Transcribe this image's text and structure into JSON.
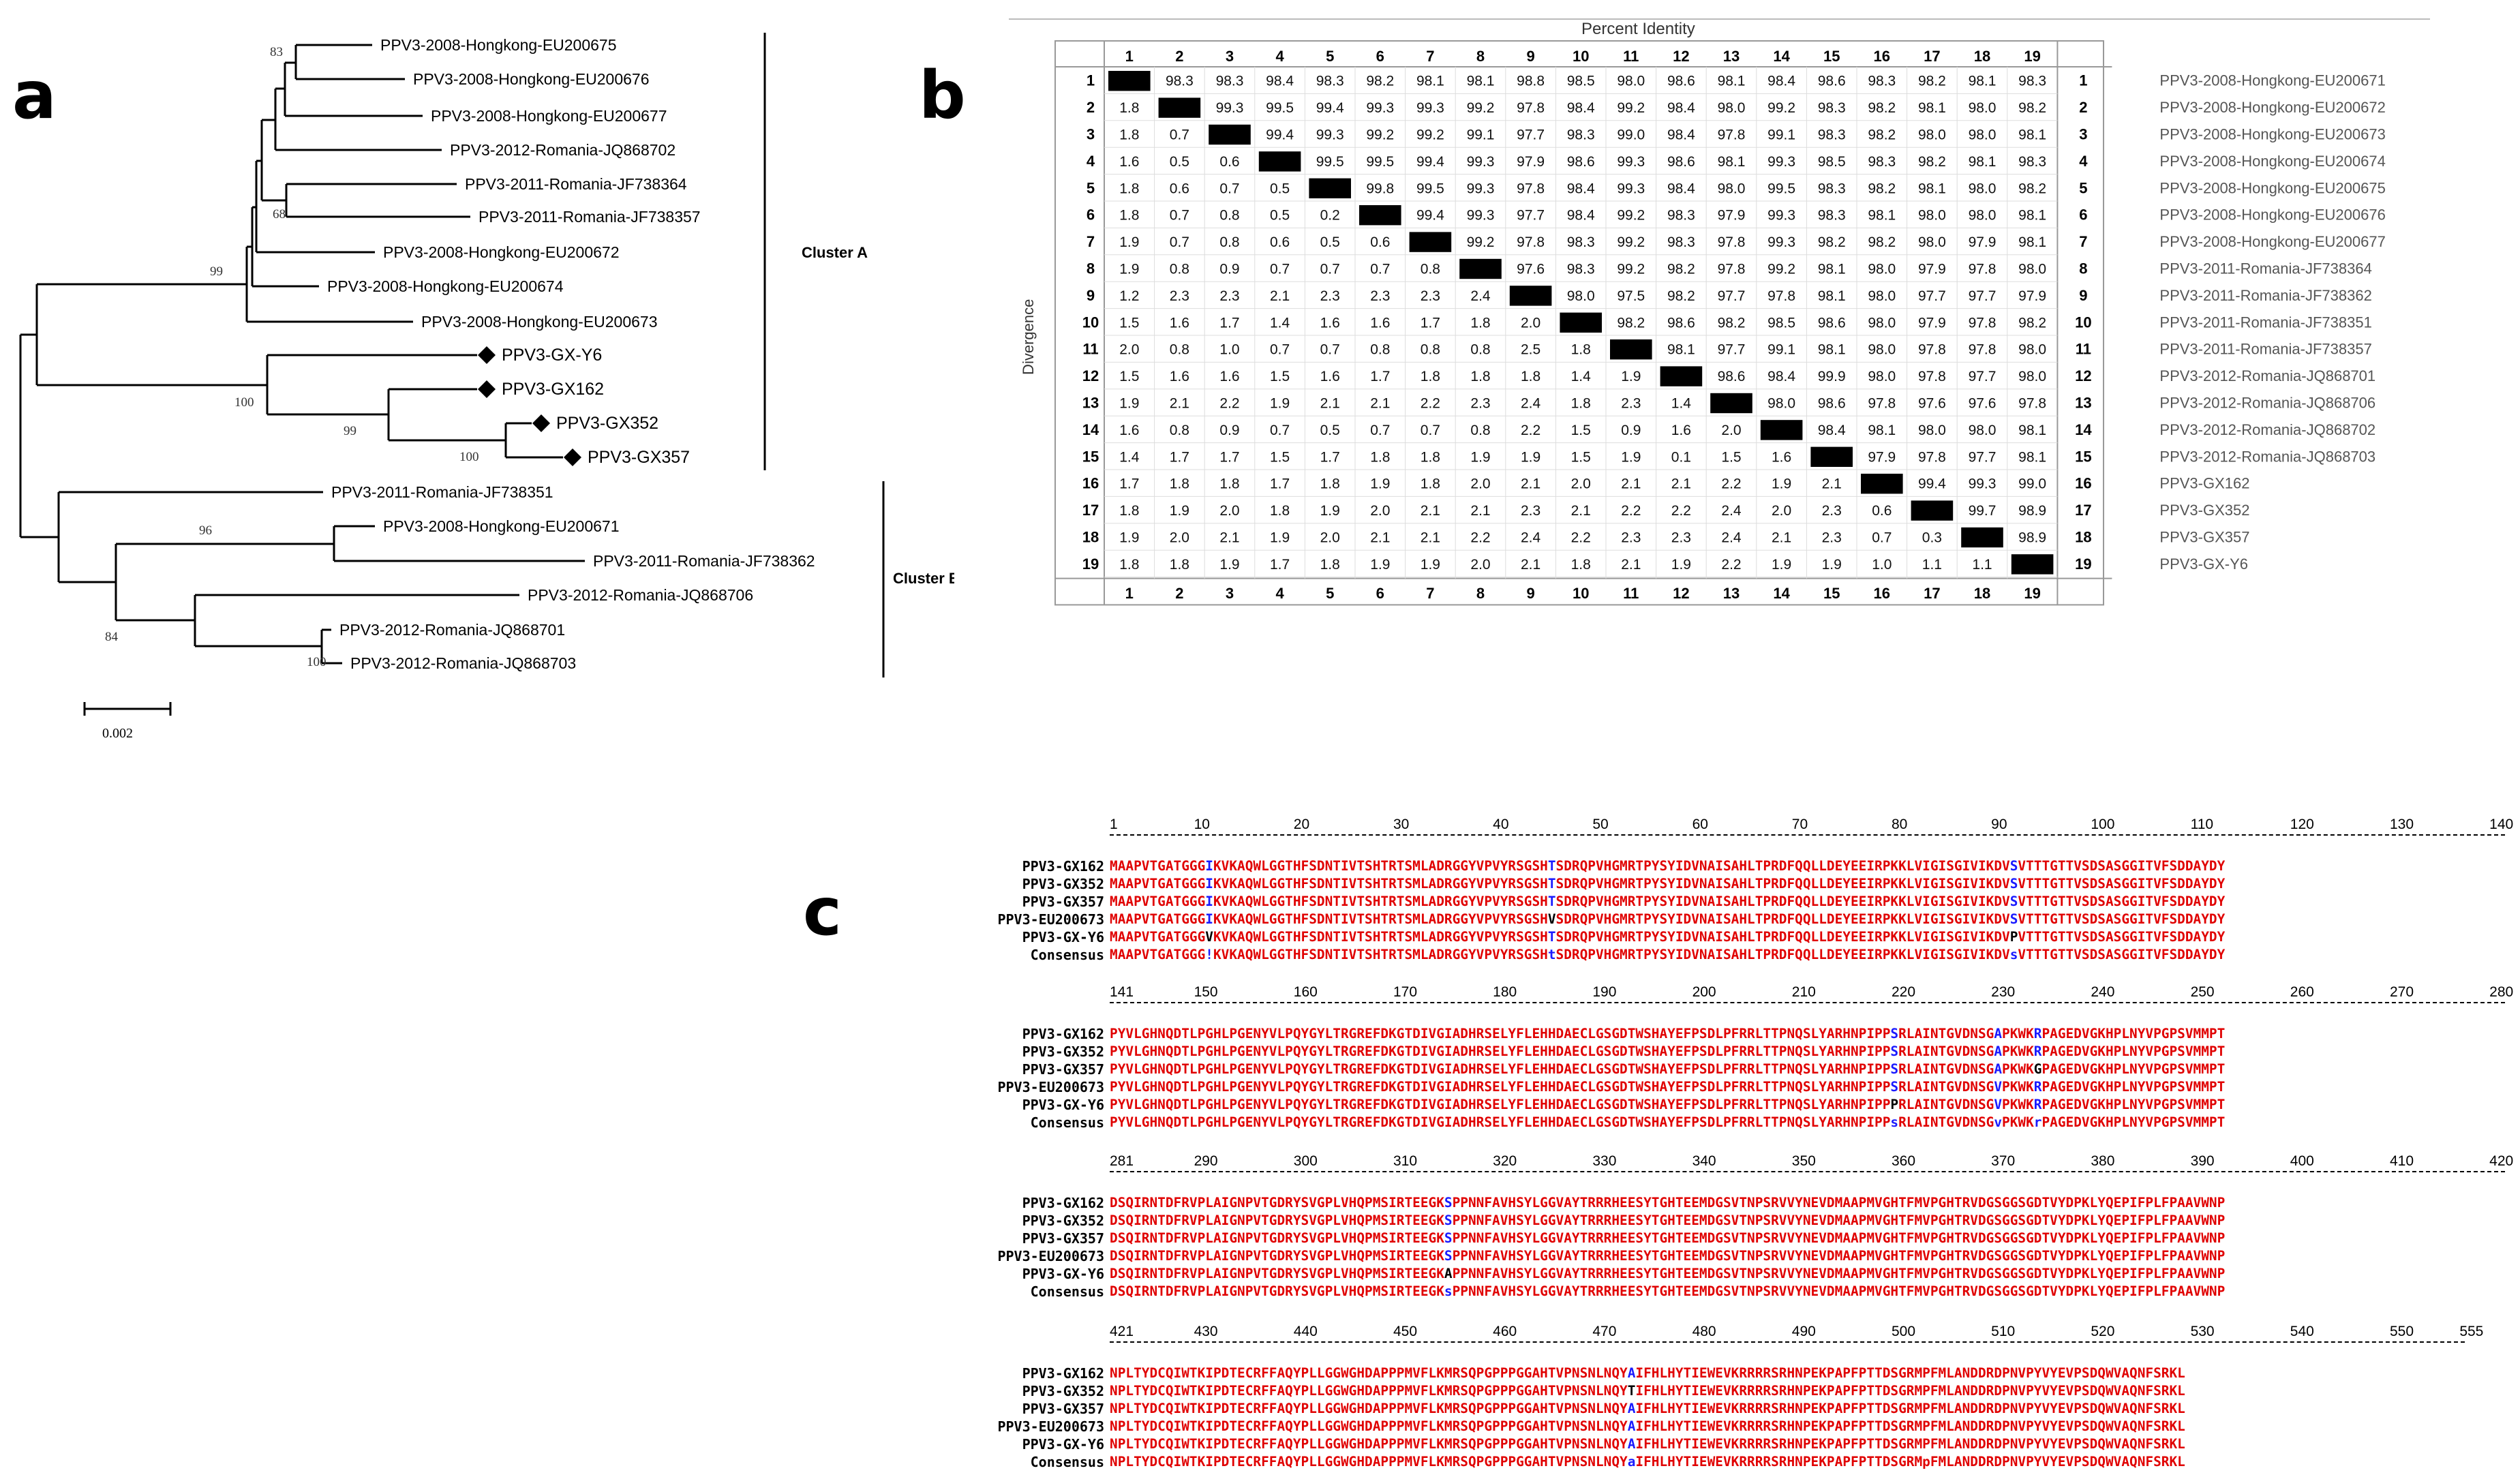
{
  "figure": {
    "panel_a": "a",
    "panel_b": "b",
    "panel_c": "c"
  },
  "tree": {
    "scale_label": "0.002",
    "cluster_a_label": "Cluster A",
    "cluster_b_label": "Cluster B",
    "leaves": [
      "PPV3-2008-Hongkong-EU200675",
      "PPV3-2008-Hongkong-EU200676",
      "PPV3-2008-Hongkong-EU200677",
      "PPV3-2012-Romania-JQ868702",
      "PPV3-2011-Romania-JF738364",
      "PPV3-2011-Romania-JF738357",
      "PPV3-2008-Hongkong-EU200672",
      "PPV3-2008-Hongkong-EU200674",
      "PPV3-2008-Hongkong-EU200673",
      "PPV3-GX-Y6",
      "PPV3-GX162",
      "PPV3-GX352",
      "PPV3-GX357",
      "PPV3-2011-Romania-JF738351",
      "PPV3-2008-Hongkong-EU200671",
      "PPV3-2011-Romania-JF738362",
      "PPV3-2012-Romania-JQ868706",
      "PPV3-2012-Romania-JQ868701",
      "PPV3-2012-Romania-JQ868703"
    ],
    "bootstrap": [
      "83",
      "68",
      "99",
      "100",
      "99",
      "100",
      "96",
      "84",
      "100"
    ]
  },
  "matrix": {
    "title": "Percent Identity",
    "ylabel": "Divergence",
    "n": 19,
    "rows": [
      [
        "",
        "98.3",
        "98.3",
        "98.4",
        "98.3",
        "98.2",
        "98.1",
        "98.1",
        "98.8",
        "98.5",
        "98.0",
        "98.6",
        "98.1",
        "98.4",
        "98.6",
        "98.3",
        "98.2",
        "98.1",
        "98.3"
      ],
      [
        "1.8",
        "",
        "99.3",
        "99.5",
        "99.4",
        "99.3",
        "99.3",
        "99.2",
        "97.8",
        "98.4",
        "99.2",
        "98.4",
        "98.0",
        "99.2",
        "98.3",
        "98.2",
        "98.1",
        "98.0",
        "98.2"
      ],
      [
        "1.8",
        "0.7",
        "",
        "99.4",
        "99.3",
        "99.2",
        "99.2",
        "99.1",
        "97.7",
        "98.3",
        "99.0",
        "98.4",
        "97.8",
        "99.1",
        "98.3",
        "98.2",
        "98.0",
        "98.0",
        "98.1"
      ],
      [
        "1.6",
        "0.5",
        "0.6",
        "",
        "99.5",
        "99.5",
        "99.4",
        "99.3",
        "97.9",
        "98.6",
        "99.3",
        "98.6",
        "98.1",
        "99.3",
        "98.5",
        "98.3",
        "98.2",
        "98.1",
        "98.3"
      ],
      [
        "1.8",
        "0.6",
        "0.7",
        "0.5",
        "",
        "99.8",
        "99.5",
        "99.3",
        "97.8",
        "98.4",
        "99.3",
        "98.4",
        "98.0",
        "99.5",
        "98.3",
        "98.2",
        "98.1",
        "98.0",
        "98.2"
      ],
      [
        "1.8",
        "0.7",
        "0.8",
        "0.5",
        "0.2",
        "",
        "99.4",
        "99.3",
        "97.7",
        "98.4",
        "99.2",
        "98.3",
        "97.9",
        "99.3",
        "98.3",
        "98.1",
        "98.0",
        "98.0",
        "98.1"
      ],
      [
        "1.9",
        "0.7",
        "0.8",
        "0.6",
        "0.5",
        "0.6",
        "",
        "99.2",
        "97.8",
        "98.3",
        "99.2",
        "98.3",
        "97.8",
        "99.3",
        "98.2",
        "98.2",
        "98.0",
        "97.9",
        "98.1"
      ],
      [
        "1.9",
        "0.8",
        "0.9",
        "0.7",
        "0.7",
        "0.7",
        "0.8",
        "",
        "97.6",
        "98.3",
        "99.2",
        "98.2",
        "97.8",
        "99.2",
        "98.1",
        "98.0",
        "97.9",
        "97.8",
        "98.0"
      ],
      [
        "1.2",
        "2.3",
        "2.3",
        "2.1",
        "2.3",
        "2.3",
        "2.3",
        "2.4",
        "",
        "98.0",
        "97.5",
        "98.2",
        "97.7",
        "97.8",
        "98.1",
        "98.0",
        "97.7",
        "97.7",
        "97.9"
      ],
      [
        "1.5",
        "1.6",
        "1.7",
        "1.4",
        "1.6",
        "1.6",
        "1.7",
        "1.8",
        "2.0",
        "",
        "98.2",
        "98.6",
        "98.2",
        "98.5",
        "98.6",
        "98.0",
        "97.9",
        "97.8",
        "98.2"
      ],
      [
        "2.0",
        "0.8",
        "1.0",
        "0.7",
        "0.7",
        "0.8",
        "0.8",
        "0.8",
        "2.5",
        "1.8",
        "",
        "98.1",
        "97.7",
        "99.1",
        "98.1",
        "98.0",
        "97.8",
        "97.8",
        "98.0"
      ],
      [
        "1.5",
        "1.6",
        "1.6",
        "1.5",
        "1.6",
        "1.7",
        "1.8",
        "1.8",
        "1.8",
        "1.4",
        "1.9",
        "",
        "98.6",
        "98.4",
        "99.9",
        "98.0",
        "97.8",
        "97.7",
        "98.0"
      ],
      [
        "1.9",
        "2.1",
        "2.2",
        "1.9",
        "2.1",
        "2.1",
        "2.2",
        "2.3",
        "2.4",
        "1.8",
        "2.3",
        "1.4",
        "",
        "98.0",
        "98.6",
        "97.8",
        "97.6",
        "97.6",
        "97.8"
      ],
      [
        "1.6",
        "0.8",
        "0.9",
        "0.7",
        "0.5",
        "0.7",
        "0.7",
        "0.8",
        "2.2",
        "1.5",
        "0.9",
        "1.6",
        "2.0",
        "",
        "98.4",
        "98.1",
        "98.0",
        "98.0",
        "98.1"
      ],
      [
        "1.4",
        "1.7",
        "1.7",
        "1.5",
        "1.7",
        "1.8",
        "1.8",
        "1.9",
        "1.9",
        "1.5",
        "1.9",
        "0.1",
        "1.5",
        "1.6",
        "",
        "97.9",
        "97.8",
        "97.7",
        "98.1"
      ],
      [
        "1.7",
        "1.8",
        "1.8",
        "1.7",
        "1.8",
        "1.9",
        "1.8",
        "2.0",
        "2.1",
        "2.0",
        "2.1",
        "2.1",
        "2.2",
        "1.9",
        "2.1",
        "",
        "99.4",
        "99.3",
        "99.0"
      ],
      [
        "1.8",
        "1.9",
        "2.0",
        "1.8",
        "1.9",
        "2.0",
        "2.1",
        "2.1",
        "2.3",
        "2.1",
        "2.2",
        "2.2",
        "2.4",
        "2.0",
        "2.3",
        "0.6",
        "",
        "99.7",
        "98.9"
      ],
      [
        "1.9",
        "2.0",
        "2.1",
        "1.9",
        "2.0",
        "2.1",
        "2.1",
        "2.2",
        "2.4",
        "2.2",
        "2.3",
        "2.3",
        "2.4",
        "2.1",
        "2.3",
        "0.7",
        "0.3",
        "",
        "98.9"
      ],
      [
        "1.8",
        "1.8",
        "1.9",
        "1.7",
        "1.8",
        "1.9",
        "1.9",
        "2.0",
        "2.1",
        "1.8",
        "2.1",
        "1.9",
        "2.2",
        "1.9",
        "1.9",
        "1.0",
        "1.1",
        "1.1",
        ""
      ]
    ],
    "seq_names": [
      "PPV3-2008-Hongkong-EU200671",
      "PPV3-2008-Hongkong-EU200672",
      "PPV3-2008-Hongkong-EU200673",
      "PPV3-2008-Hongkong-EU200674",
      "PPV3-2008-Hongkong-EU200675",
      "PPV3-2008-Hongkong-EU200676",
      "PPV3-2008-Hongkong-EU200677",
      "PPV3-2011-Romania-JF738364",
      "PPV3-2011-Romania-JF738362",
      "PPV3-2011-Romania-JF738351",
      "PPV3-2011-Romania-JF738357",
      "PPV3-2012-Romania-JQ868701",
      "PPV3-2012-Romania-JQ868706",
      "PPV3-2012-Romania-JQ868702",
      "PPV3-2012-Romania-JQ868703",
      "PPV3-GX162",
      "PPV3-GX352",
      "PPV3-GX357",
      "PPV3-GX-Y6"
    ]
  },
  "alignment": {
    "names": [
      "PPV3-GX162",
      "PPV3-GX352",
      "PPV3-GX357",
      "PPV3-EU200673",
      "PPV3-GX-Y6",
      "Consensus"
    ],
    "blocks": [
      {
        "ruler": [
          "1",
          "10",
          "20",
          "30",
          "40",
          "50",
          "60",
          "70",
          "80",
          "90",
          "100",
          "110",
          "120",
          "130",
          "140"
        ],
        "seqs": [
          "MAAPVTGATGGGIKVKAQWLGGTHFSDNTIVTSHTRTSMLADRGGYVPVYRSGSHTSDRQPVHGMRTPYSYIDVNAISAHLTPRDFQQLLDEYEEIRPKKLVIGISGIVIKDVSVTTTGTTVSDSASGGITVFSDDAYDY",
          "MAAPVTGATGGGIKVKAQWLGGTHFSDNTIVTSHTRTSMLADRGGYVPVYRSGSHTSDRQPVHGMRTPYSYIDVNAISAHLTPRDFQQLLDEYEEIRPKKLVIGISGIVIKDVSVTTTGTTVSDSASGGITVFSDDAYDY",
          "MAAPVTGATGGGIKVKAQWLGGTHFSDNTIVTSHTRTSMLADRGGYVPVYRSGSHTSDRQPVHGMRTPYSYIDVNAISAHLTPRDFQQLLDEYEEIRPKKLVIGISGIVIKDVSVTTTGTTVSDSASGGITVFSDDAYDY",
          "MAAPVTGATGGGIKVKAQWLGGTHFSDNTIVTSHTRTSMLADRGGYVPVYRSGSHVSDRQPVHGMRTPYSYIDVNAISAHLTPRDFQQLLDEYEEIRPKKLVIGISGIVIKDVSVTTTGTTVSDSASGGITVFSDDAYDY",
          "MAAPVTGATGGGVKVKAQWLGGTHFSDNTIVTSHTRTSMLADRGGYVPVYRSGSHTSDRQPVHGMRTPYSYIDVNAISAHLTPRDFQQLLDEYEEIRPKKLVIGISGIVIKDVPVTTTGTTVSDSASGGITVFSDDAYDY",
          "MAAPVTGATGGG!KVKAQWLGGTHFSDNTIVTSHTRTSMLADRGGYVPVYRSGSHtSDRQPVHGMRTPYSYIDVNAISAHLTPRDFQQLLDEYEEIRPKKLVIGISGIVIKDVsVTTTGTTVSDSASGGITVFSDDAYDY"
        ]
      },
      {
        "ruler": [
          "141",
          "150",
          "160",
          "170",
          "180",
          "190",
          "200",
          "210",
          "220",
          "230",
          "240",
          "250",
          "260",
          "270",
          "280"
        ],
        "seqs": [
          "PYVLGHNQDTLPGHLPGENYVLPQYGYLTRGREFDKGTDIVGIADHRSELYFLEHHDAECLGSGDTWSHAYEFPSDLPFRRLTTPNQSLYARHNPIPPSRLAINTGVDNSGAPKWKRPAGEDVGKHPLNYVPGPSVMMPT",
          "PYVLGHNQDTLPGHLPGENYVLPQYGYLTRGREFDKGTDIVGIADHRSELYFLEHHDAECLGSGDTWSHAYEFPSDLPFRRLTTPNQSLYARHNPIPPSRLAINTGVDNSGAPKWKRPAGEDVGKHPLNYVPGPSVMMPT",
          "PYVLGHNQDTLPGHLPGENYVLPQYGYLTRGREFDKGTDIVGIADHRSELYFLEHHDAECLGSGDTWSHAYEFPSDLPFRRLTTPNQSLYARHNPIPPSRLAINTGVDNSGAPKWKGPAGEDVGKHPLNYVPGPSVMMPT",
          "PYVLGHNQDTLPGHLPGENYVLPQYGYLTRGREFDKGTDIVGIADHRSELYFLEHHDAECLGSGDTWSHAYEFPSDLPFRRLTTPNQSLYARHNPIPPSRLAINTGVDNSGVPKWKRPAGEDVGKHPLNYVPGPSVMMPT",
          "PYVLGHNQDTLPGHLPGENYVLPQYGYLTRGREFDKGTDIVGIADHRSELYFLEHHDAECLGSGDTWSHAYEFPSDLPFRRLTTPNQSLYARHNPIPPPRLAINTGVDNSGVPKWKRPAGEDVGKHPLNYVPGPSVMMPT",
          "PYVLGHNQDTLPGHLPGENYVLPQYGYLTRGREFDKGTDIVGIADHRSELYFLEHHDAECLGSGDTWSHAYEFPSDLPFRRLTTPNQSLYARHNPIPPsRLAINTGVDNSGvPKWKrPAGEDVGKHPLNYVPGPSVMMPT"
        ]
      },
      {
        "ruler": [
          "281",
          "290",
          "300",
          "310",
          "320",
          "330",
          "340",
          "350",
          "360",
          "370",
          "380",
          "390",
          "400",
          "410",
          "420"
        ],
        "seqs": [
          "DSQIRNTDFRVPLAIGNPVTGDRYSVGPLVHQPMSIRTEEGKSPPNNFAVHSYLGGVAYTRRRHEESYTGHTEEMDGSVTNPSRVVYNEVDMAAPMVGHTFMVPGHTRVDGSGGSGDTVYDPKLYQEPIFPLFPAAVWNP",
          "DSQIRNTDFRVPLAIGNPVTGDRYSVGPLVHQPMSIRTEEGKSPPNNFAVHSYLGGVAYTRRRHEESYTGHTEEMDGSVTNPSRVVYNEVDMAAPMVGHTFMVPGHTRVDGSGGSGDTVYDPKLYQEPIFPLFPAAVWNP",
          "DSQIRNTDFRVPLAIGNPVTGDRYSVGPLVHQPMSIRTEEGKSPPNNFAVHSYLGGVAYTRRRHEESYTGHTEEMDGSVTNPSRVVYNEVDMAAPMVGHTFMVPGHTRVDGSGGSGDTVYDPKLYQEPIFPLFPAAVWNP",
          "DSQIRNTDFRVPLAIGNPVTGDRYSVGPLVHQPMSIRTEEGKSPPNNFAVHSYLGGVAYTRRRHEESYTGHTEEMDGSVTNPSRVVYNEVDMAAPMVGHTFMVPGHTRVDGSGGSGDTVYDPKLYQEPIFPLFPAAVWNP",
          "DSQIRNTDFRVPLAIGNPVTGDRYSVGPLVHQPMSIRTEEGKAPPNNFAVHSYLGGVAYTRRRHEESYTGHTEEMDGSVTNPSRVVYNEVDMAAPMVGHTFMVPGHTRVDGSGGSGDTVYDPKLYQEPIFPLFPAAVWNP",
          "DSQIRNTDFRVPLAIGNPVTGDRYSVGPLVHQPMSIRTEEGKsPPNNFAVHSYLGGVAYTRRRHEESYTGHTEEMDGSVTNPSRVVYNEVDMAAPMVGHTFMVPGHTRVDGSGGSGDTVYDPKLYQEPIFPLFPAAVWNP"
        ]
      },
      {
        "ruler": [
          "421",
          "430",
          "440",
          "450",
          "460",
          "470",
          "480",
          "490",
          "500",
          "510",
          "520",
          "530",
          "540",
          "550",
          "555"
        ],
        "seqs": [
          "NPLTYDCQIWTKIPDTECRFFAQYPLLGGWGHDAPPPMVFLKMRSQPGPPPGGAHTVPNSNLNQYAIFHLHYTIEWEVKRRRRSRHNPEKPAPFPTTDSGRMPFMLANDDRDPNVPYVYEVPSDQWVAQNFSRKL",
          "NPLTYDCQIWTKIPDTECRFFAQYPLLGGWGHDAPPPMVFLKMRSQPGPPPGGAHTVPNSNLNQYTIFHLHYTIEWEVKRRRRSRHNPEKPAPFPTTDSGRMPFMLANDDRDPNVPYVYEVPSDQWVAQNFSRKL",
          "NPLTYDCQIWTKIPDTECRFFAQYPLLGGWGHDAPPPMVFLKMRSQPGPPPGGAHTVPNSNLNQYAIFHLHYTIEWEVKRRRRSRHNPEKPAPFPTTDSGRMPFMLANDDRDPNVPYVYEVPSDQWVAQNFSRKL",
          "NPLTYDCQIWTKIPDTECRFFAQYPLLGGWGHDAPPPMVFLKMRSQPGPPPGGAHTVPNSNLNQYAIFHLHYTIEWEVKRRRRSRHNPEKPAPFPTTDSGRMPFMLANDDRDPNVPYVYEVPSDQWVAQNFSRKL",
          "NPLTYDCQIWTKIPDTECRFFAQYPLLGGWGHDAPPPMVFLKMRSQPGPPPGGAHTVPNSNLNQYAIFHLHYTIEWEVKRRRRSRHNPEKPAPFPTTDSGRMPFMLANDDRDPNVPYVYEVPSDQWVAQNFSRKL",
          "NPLTYDCQIWTKIPDTECRFFAQYPLLGGWGHDAPPPMVFLKMRSQPGPPPGGAHTVPNSNLNQYaIFHLHYTIEWEVKRRRRSRHNPEKPAPFPTTDSGRMpFMLANDDRDPNVPYVYEVPSDQWVAQNFSRKL"
        ]
      }
    ]
  },
  "colors": {
    "conserved": "#e00000",
    "variable": "#1a1aff",
    "unique": "#000000",
    "diag": "#000000"
  }
}
